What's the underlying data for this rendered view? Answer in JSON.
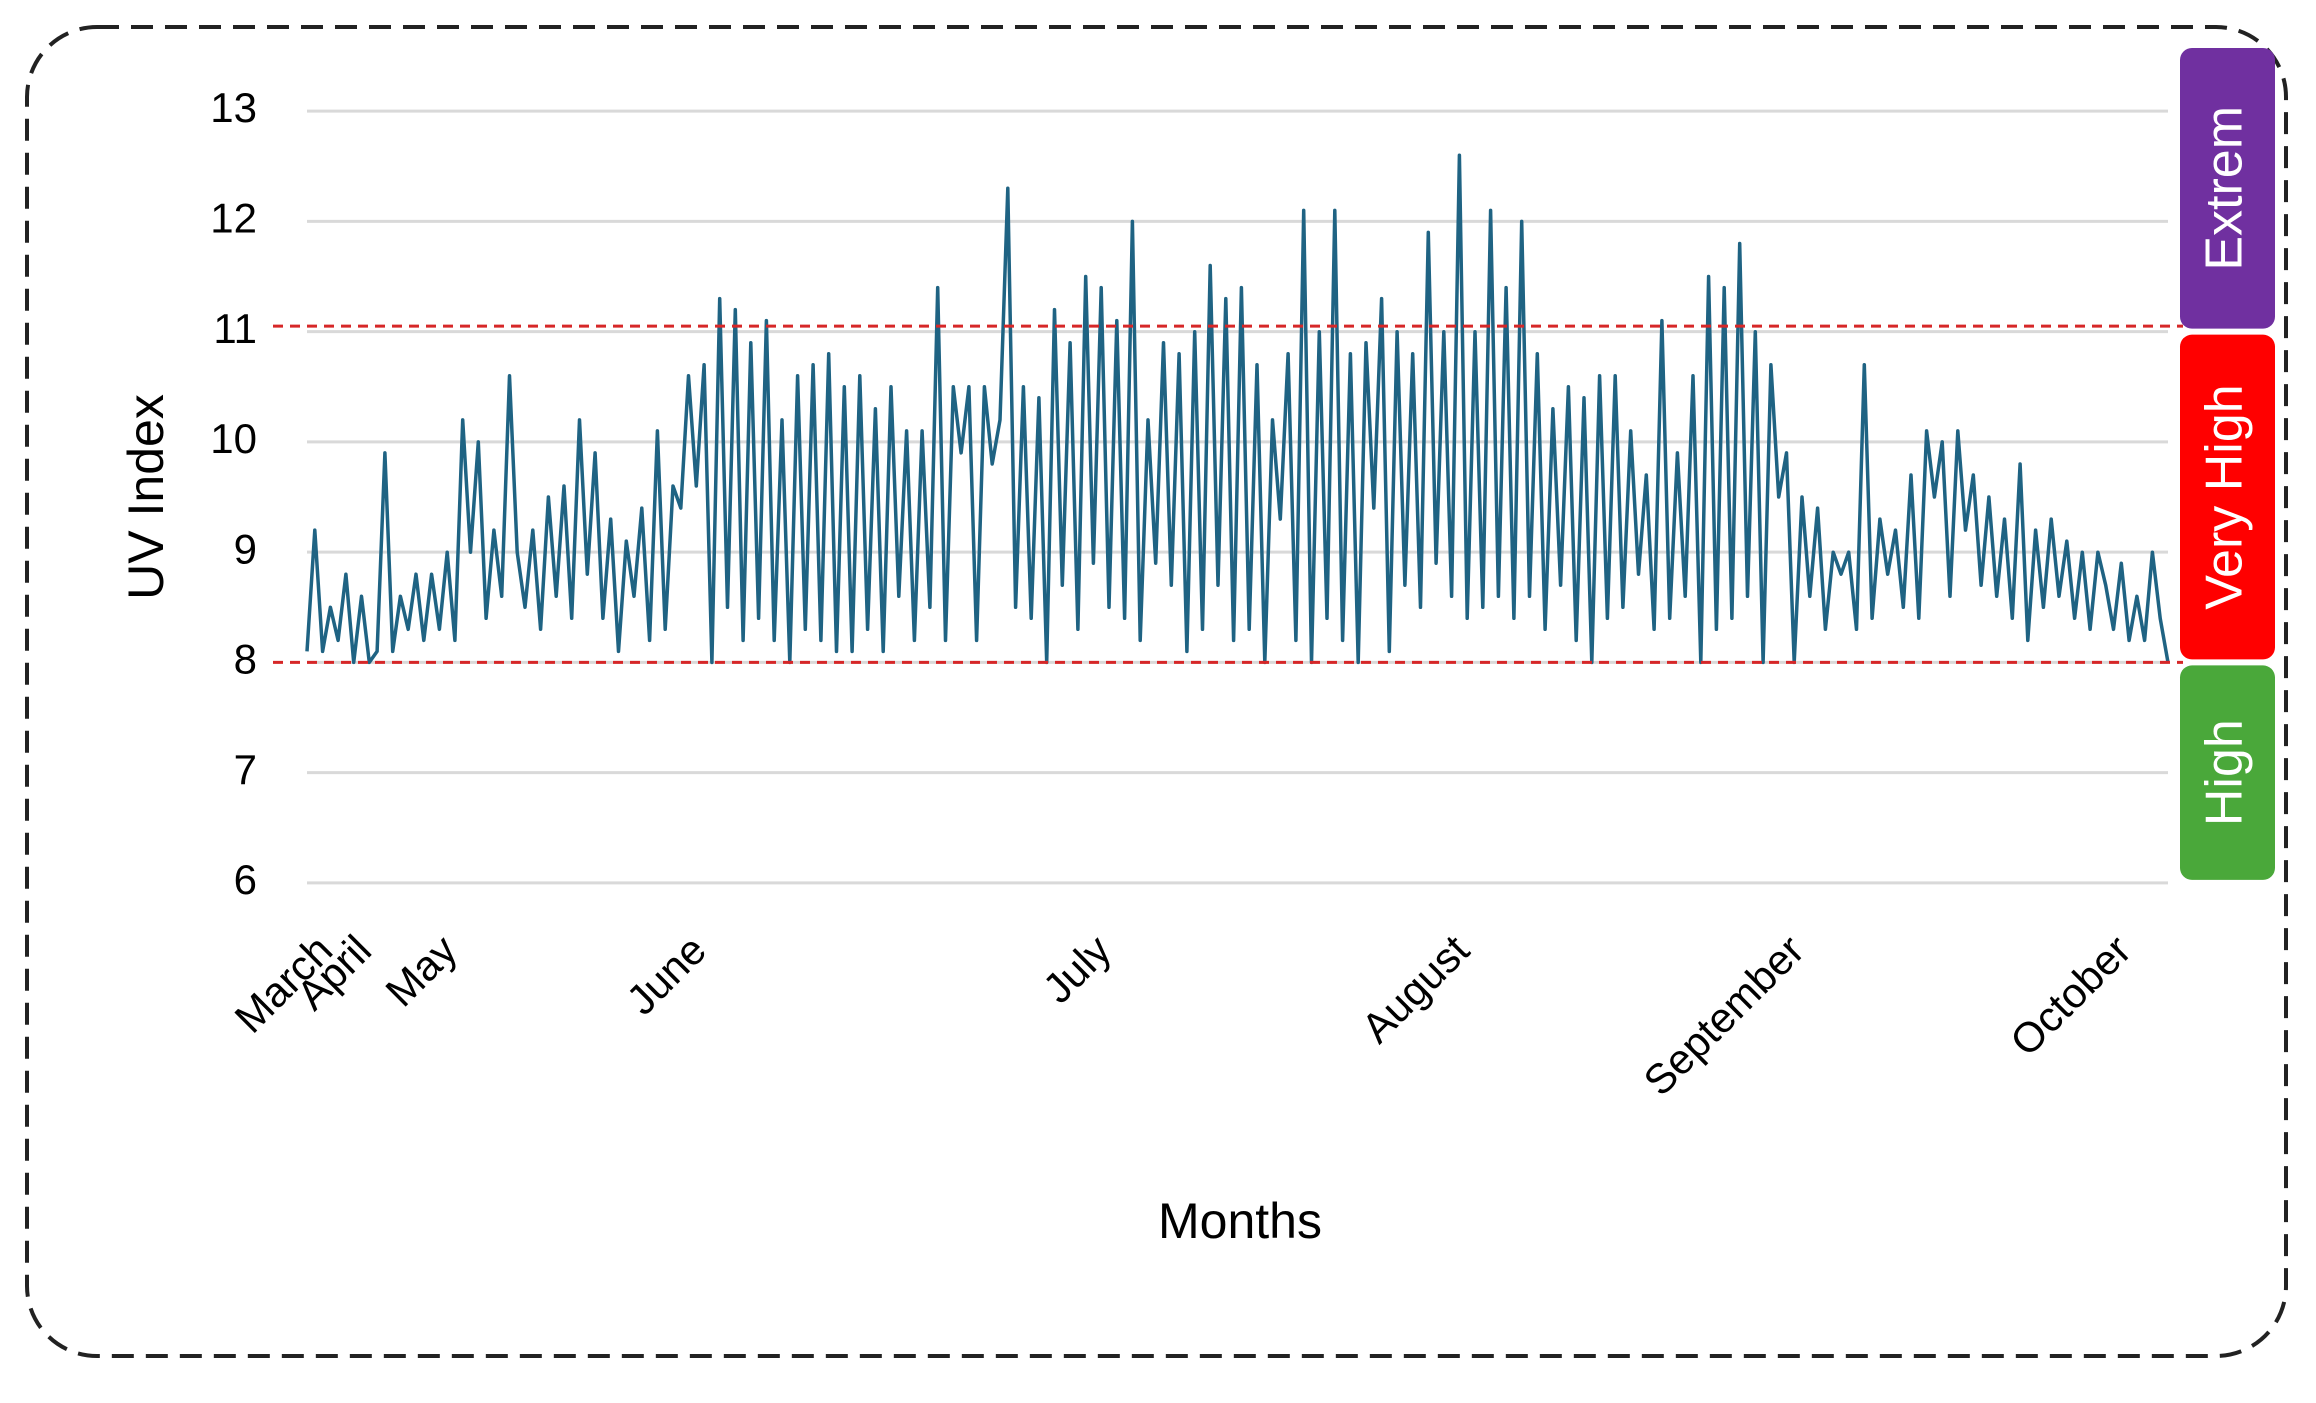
{
  "chart_data": {
    "type": "line",
    "x_label": "Months",
    "y_label": "UV Index",
    "color": "#1f6383",
    "ylim": [
      5.7,
      13.6
    ],
    "yticks": [
      6,
      7,
      8,
      9,
      10,
      11,
      12,
      13
    ],
    "grid": true,
    "categories": [
      "March",
      null,
      null,
      null,
      null,
      "April",
      null,
      null,
      null,
      null,
      null,
      null,
      null,
      null,
      null,
      null,
      "May",
      null,
      null,
      null,
      null,
      null,
      null,
      null,
      null,
      null,
      null,
      null,
      null,
      null,
      null,
      null,
      null,
      null,
      null,
      null,
      null,
      null,
      null,
      null,
      null,
      null,
      null,
      null,
      null,
      null,
      null,
      null,
      "June",
      null,
      null,
      null,
      null,
      null,
      null,
      null,
      null,
      null,
      null,
      null,
      null,
      null,
      null,
      null,
      null,
      null,
      null,
      null,
      null,
      null,
      null,
      null,
      null,
      null,
      null,
      null,
      null,
      null,
      null,
      null,
      null,
      null,
      null,
      null,
      null,
      null,
      null,
      null,
      null,
      null,
      null,
      null,
      null,
      null,
      null,
      null,
      null,
      null,
      null,
      null,
      "July",
      null,
      null,
      null,
      null,
      null,
      null,
      null,
      null,
      null,
      null,
      null,
      null,
      null,
      null,
      null,
      null,
      null,
      null,
      null,
      null,
      null,
      null,
      null,
      null,
      null,
      null,
      null,
      null,
      null,
      null,
      null,
      null,
      null,
      null,
      null,
      null,
      null,
      null,
      null,
      null,
      null,
      null,
      null,
      null,
      null,
      "August",
      null,
      null,
      null,
      null,
      null,
      null,
      null,
      null,
      null,
      null,
      null,
      null,
      null,
      null,
      null,
      null,
      null,
      null,
      null,
      null,
      null,
      null,
      null,
      null,
      null,
      null,
      null,
      null,
      null,
      null,
      null,
      null,
      null,
      null,
      null,
      null,
      null,
      null,
      null,
      null,
      null,
      null,
      "September",
      null,
      null,
      null,
      null,
      null,
      null,
      null,
      null,
      null,
      null,
      null,
      null,
      null,
      null,
      null,
      null,
      null,
      null,
      null,
      null,
      null,
      null,
      null,
      null,
      null,
      null,
      null,
      null,
      null,
      null,
      null,
      null,
      null,
      null,
      null,
      null,
      null,
      null,
      null,
      null,
      null,
      "October",
      null,
      null,
      null,
      null,
      null,
      null,
      null,
      null
    ],
    "values": [
      8.1,
      9.2,
      8.1,
      8.5,
      8.2,
      8.8,
      8.0,
      8.6,
      8.0,
      8.1,
      9.9,
      8.1,
      8.6,
      8.3,
      8.8,
      8.2,
      8.8,
      8.3,
      9.0,
      8.2,
      10.2,
      9.0,
      10.0,
      8.4,
      9.2,
      8.6,
      10.6,
      9.0,
      8.5,
      9.2,
      8.3,
      9.5,
      8.6,
      9.6,
      8.4,
      10.2,
      8.8,
      9.9,
      8.4,
      9.3,
      8.1,
      9.1,
      8.6,
      9.4,
      8.2,
      10.1,
      8.3,
      9.6,
      9.4,
      10.6,
      9.6,
      10.7,
      8.0,
      11.3,
      8.5,
      11.2,
      8.2,
      10.9,
      8.4,
      11.1,
      8.2,
      10.2,
      8.0,
      10.6,
      8.3,
      10.7,
      8.2,
      10.8,
      8.1,
      10.5,
      8.1,
      10.6,
      8.3,
      10.3,
      8.1,
      10.5,
      8.6,
      10.1,
      8.2,
      10.1,
      8.5,
      11.4,
      8.2,
      10.5,
      9.9,
      10.5,
      8.2,
      10.5,
      9.8,
      10.2,
      12.3,
      8.5,
      10.5,
      8.4,
      10.4,
      8.0,
      11.2,
      8.7,
      10.9,
      8.3,
      11.5,
      8.9,
      11.4,
      8.5,
      11.1,
      8.4,
      12.0,
      8.2,
      10.2,
      8.9,
      10.9,
      8.7,
      10.8,
      8.1,
      11.0,
      8.3,
      11.6,
      8.7,
      11.3,
      8.2,
      11.4,
      8.3,
      10.7,
      8.0,
      10.2,
      9.3,
      10.8,
      8.2,
      12.1,
      8.0,
      11.0,
      8.4,
      12.1,
      8.2,
      10.8,
      8.0,
      10.9,
      9.4,
      11.3,
      8.1,
      11.0,
      8.7,
      10.8,
      8.5,
      11.9,
      8.9,
      11.0,
      8.6,
      12.6,
      8.4,
      11.0,
      8.5,
      12.1,
      8.6,
      11.4,
      8.4,
      12.0,
      8.6,
      10.8,
      8.3,
      10.3,
      8.7,
      10.5,
      8.2,
      10.4,
      8.0,
      10.6,
      8.4,
      10.6,
      8.5,
      10.1,
      8.8,
      9.7,
      8.3,
      11.1,
      8.4,
      9.9,
      8.6,
      10.6,
      8.0,
      11.5,
      8.3,
      11.4,
      8.4,
      11.8,
      8.6,
      11.0,
      8.0,
      10.7,
      9.5,
      9.9,
      8.0,
      9.5,
      8.6,
      9.4,
      8.3,
      9.0,
      8.8,
      9.0,
      8.3,
      10.7,
      8.4,
      9.3,
      8.8,
      9.2,
      8.5,
      9.7,
      8.4,
      10.1,
      9.5,
      10.0,
      8.6,
      10.1,
      9.2,
      9.7,
      8.7,
      9.5,
      8.6,
      9.3,
      8.4,
      9.8,
      8.2,
      9.2,
      8.5,
      9.3,
      8.6,
      9.1,
      8.4,
      9.0,
      8.3,
      9.0,
      8.7,
      8.3,
      8.9,
      8.2,
      8.6,
      8.2,
      9.0,
      8.4,
      8.0
    ],
    "reference_lines": [
      {
        "value": 11.05,
        "color": "#d62728"
      },
      {
        "value": 8,
        "color": "#d62728"
      }
    ],
    "bands": [
      {
        "label": "High",
        "from": 6,
        "to": 8,
        "color": "#4aa83a"
      },
      {
        "label": "Very High",
        "from": 8,
        "to": 11,
        "color": "#ff0000"
      },
      {
        "label": "Extrem",
        "from": 11,
        "to": 13.6,
        "color": "#7030a0"
      }
    ]
  }
}
